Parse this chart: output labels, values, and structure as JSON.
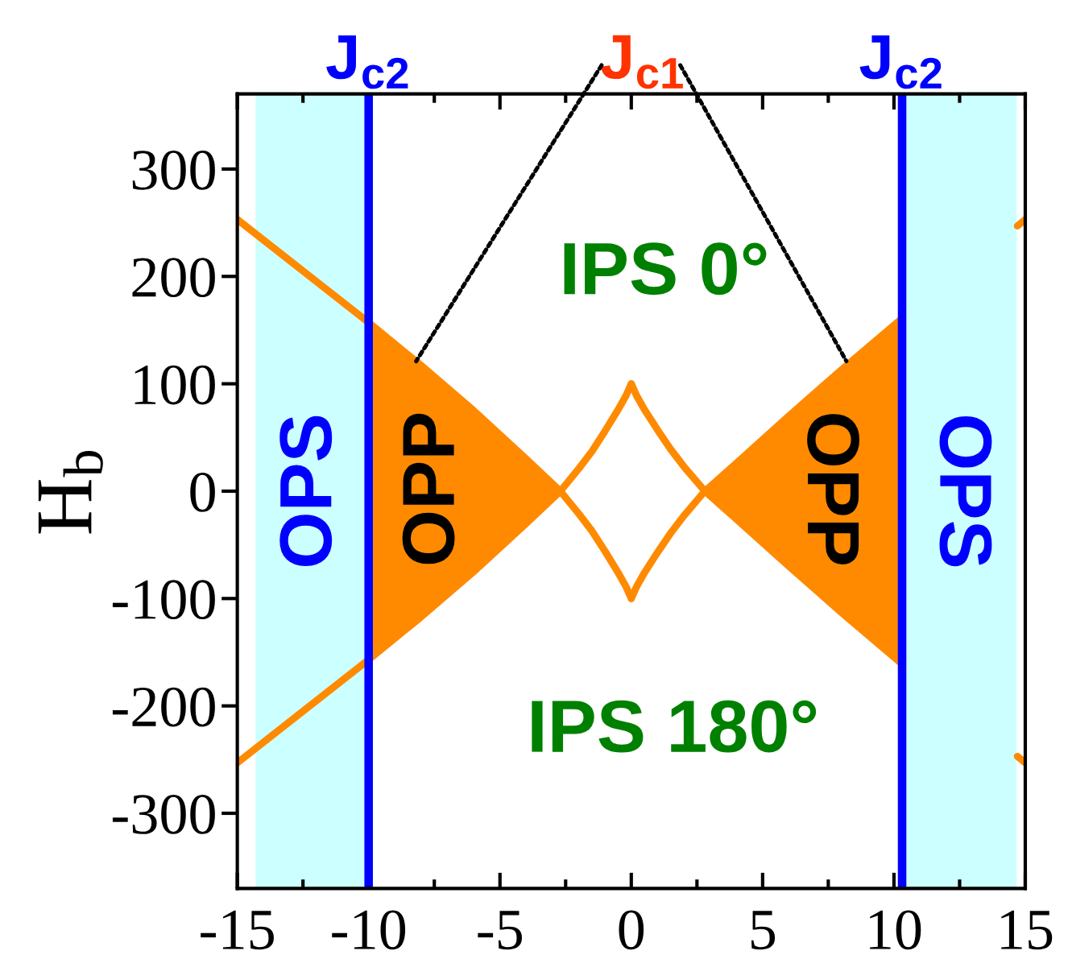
{
  "chart_data": {
    "type": "line",
    "ylabel": "H$_{b}$",
    "xlim": [
      -15,
      15
    ],
    "ylim": [
      -370,
      370
    ],
    "xticks": [
      -15,
      -10,
      -5,
      0,
      5,
      10,
      15
    ],
    "yticks": [
      -300,
      -200,
      -100,
      0,
      100,
      200,
      300
    ],
    "series": [
      {
        "color": "#ff8a00",
        "x": [
          -15,
          -12.5,
          -10,
          -8,
          -6,
          -4,
          -2.7,
          -2,
          -1.5,
          -1,
          -0.5,
          -0.2,
          0
        ],
        "values": [
          253,
          205,
          157,
          117,
          75,
          30,
          0,
          -21,
          -37,
          -56,
          -76,
          -89,
          -100
        ],
        "upper": [
          null,
          null,
          157,
          117,
          75,
          30,
          0,
          null,
          null,
          null,
          null,
          null,
          null
        ],
        "lower": [
          null,
          null,
          -157,
          -117,
          -75,
          -30,
          0,
          null,
          null,
          null,
          null,
          null,
          null
        ]
      },
      {
        "color": "#ff8a00",
        "x": [
          -15,
          -12.5,
          -10,
          -8,
          -6,
          -4,
          -2.7,
          -2,
          -1.5,
          -1,
          -0.5,
          -0.2,
          0
        ],
        "values": [
          -253,
          -205,
          -157,
          -117,
          -75,
          -30,
          0,
          21,
          37,
          56,
          76,
          89,
          100
        ]
      },
      {
        "color": "#ff8a00",
        "x": [
          0,
          0.2,
          0.5,
          1,
          1.5,
          2,
          2.8,
          4,
          6,
          8,
          10.31,
          12.5,
          14.7,
          15
        ],
        "values": [
          -100,
          -89,
          -76,
          -57,
          -39,
          -23,
          0,
          26,
          70,
          113,
          161,
          null,
          247,
          253
        ],
        "upper": [
          null,
          null,
          null,
          null,
          null,
          null,
          0,
          26,
          70,
          113,
          161,
          null,
          null,
          null
        ],
        "lower": [
          null,
          null,
          null,
          null,
          null,
          null,
          0,
          -26,
          -70,
          -113,
          -161,
          null,
          null,
          null
        ]
      },
      {
        "color": "#ff8a00",
        "x": [
          0,
          0.2,
          0.5,
          1,
          1.5,
          2,
          2.8,
          4,
          6,
          8,
          10.31,
          12.5,
          14.7,
          15
        ],
        "values": [
          100,
          89,
          76,
          57,
          39,
          23,
          0,
          -26,
          -70,
          -113,
          -161,
          null,
          -247,
          -253
        ]
      }
    ],
    "ref_lines": [
      {
        "axis": "x",
        "value": -10,
        "label": "J$_{c2}$",
        "color": "#0000ff"
      },
      {
        "axis": "x",
        "value": 10.31,
        "label": "J$_{c2}$",
        "color": "#0000ff"
      }
    ],
    "bands": [
      {
        "axis": "x",
        "from": -14.3,
        "to": -10,
        "label": "OPS",
        "color": "#ccffff"
      },
      {
        "axis": "x",
        "from": 10.31,
        "to": 14.67,
        "label": "OPS",
        "color": "#ccffff"
      }
    ],
    "annotations": [
      {
        "text": "J$_{c1}$",
        "x": -8.19,
        "y": 121
      },
      "IPS 0°",
      "OPP",
      "OPP",
      "IPS 180°"
    ]
  }
}
